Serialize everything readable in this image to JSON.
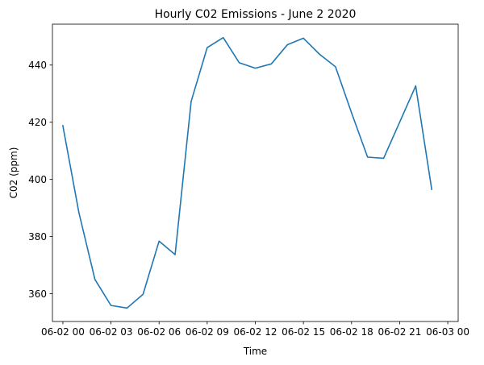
{
  "chart_data": {
    "type": "line",
    "title": "Hourly C02 Emissions - June 2 2020",
    "xlabel": "Time",
    "ylabel": "C02 (ppm)",
    "xlim": [
      -0.65,
      24.65
    ],
    "ylim": [
      350.3,
      454.3
    ],
    "grid": false,
    "x_tick_values": [
      0,
      3,
      6,
      9,
      12,
      15,
      18,
      21,
      24
    ],
    "x_tick_labels": [
      "06-02 00",
      "06-02 03",
      "06-02 06",
      "06-02 09",
      "06-02 12",
      "06-02 15",
      "06-02 18",
      "06-02 21",
      "06-03 00"
    ],
    "y_tick_values": [
      360,
      380,
      400,
      420,
      440
    ],
    "y_tick_labels": [
      "360",
      "380",
      "400",
      "420",
      "440"
    ],
    "x": [
      0,
      1,
      2,
      3,
      4,
      5,
      6,
      7,
      8,
      9,
      10,
      11,
      12,
      13,
      14,
      15,
      16,
      17,
      18,
      19,
      20,
      21,
      22,
      23
    ],
    "series": [
      {
        "color": "#1f77b4",
        "values": [
          418.8,
          388.4,
          365.0,
          355.9,
          355.0,
          359.8,
          378.4,
          373.7,
          427.3,
          446.1,
          449.6,
          440.8,
          438.9,
          440.4,
          447.1,
          449.4,
          443.8,
          439.4,
          423.3,
          407.8,
          407.4,
          420.0,
          432.7,
          396.5
        ]
      }
    ]
  }
}
